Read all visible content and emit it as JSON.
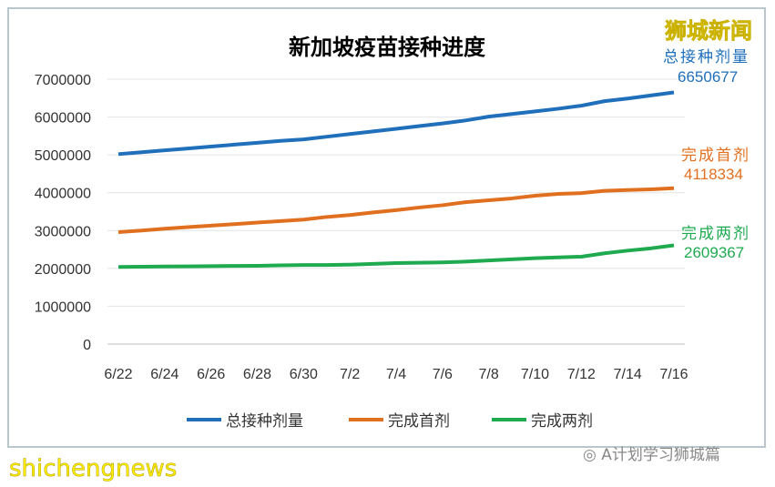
{
  "brand": "狮城新闻",
  "watermark_left": "shichengnews",
  "watermark_right": "A计划学习狮城篇",
  "annotations": [
    {
      "label": "总接种剂量",
      "value": "6650677",
      "color": "#1f6fba"
    },
    {
      "label": "完成首剂",
      "value": "4118334",
      "color": "#e07020"
    },
    {
      "label": "完成两剂",
      "value": "2609367",
      "color": "#1faa50"
    }
  ],
  "chart_data": {
    "type": "line",
    "title": "新加坡疫苗接种进度",
    "xlabel": "",
    "ylabel": "",
    "ylim": [
      0,
      7000000
    ],
    "yticks": [
      0,
      1000000,
      2000000,
      3000000,
      4000000,
      5000000,
      6000000,
      7000000
    ],
    "categories": [
      "6/22",
      "6/23",
      "6/24",
      "6/25",
      "6/26",
      "6/27",
      "6/28",
      "6/29",
      "6/30",
      "7/1",
      "7/2",
      "7/3",
      "7/4",
      "7/5",
      "7/6",
      "7/7",
      "7/8",
      "7/9",
      "7/10",
      "7/11",
      "7/12",
      "7/13",
      "7/14",
      "7/15",
      "7/16"
    ],
    "tick_labels": [
      "6/22",
      "6/24",
      "6/26",
      "6/28",
      "6/30",
      "7/2",
      "7/4",
      "7/6",
      "7/8",
      "7/10",
      "7/12",
      "7/14",
      "7/16"
    ],
    "grid": true,
    "legend": "bottom",
    "series": [
      {
        "name": "总接种剂量",
        "color": "#1f6fba",
        "values": [
          5020000,
          5070000,
          5120000,
          5170000,
          5220000,
          5270000,
          5320000,
          5370000,
          5410000,
          5480000,
          5550000,
          5620000,
          5690000,
          5760000,
          5830000,
          5910000,
          6010000,
          6080000,
          6150000,
          6220000,
          6300000,
          6420000,
          6490000,
          6570000,
          6650677
        ]
      },
      {
        "name": "完成首剂",
        "color": "#e07020",
        "values": [
          2960000,
          3000000,
          3050000,
          3090000,
          3130000,
          3170000,
          3210000,
          3250000,
          3290000,
          3360000,
          3410000,
          3480000,
          3540000,
          3610000,
          3670000,
          3750000,
          3800000,
          3850000,
          3920000,
          3970000,
          3990000,
          4050000,
          4070000,
          4090000,
          4118334
        ]
      },
      {
        "name": "完成两剂",
        "color": "#1faa50",
        "values": [
          2040000,
          2045000,
          2050000,
          2055000,
          2060000,
          2065000,
          2070000,
          2080000,
          2090000,
          2090000,
          2100000,
          2120000,
          2140000,
          2150000,
          2160000,
          2180000,
          2210000,
          2240000,
          2270000,
          2290000,
          2310000,
          2400000,
          2470000,
          2530000,
          2609367
        ]
      }
    ]
  }
}
